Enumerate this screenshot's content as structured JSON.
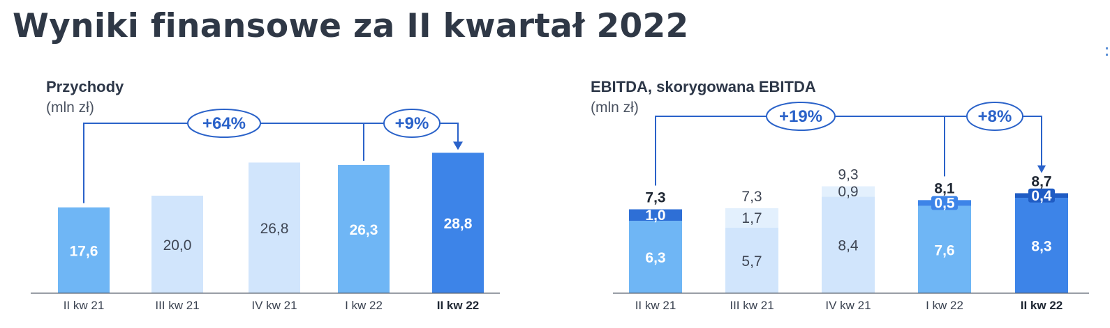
{
  "title": "Wyniki finansowe za II kwartał 2022",
  "chart_data": [
    {
      "type": "bar",
      "title": "Przychody",
      "subtitle": "(mln zł)",
      "categories": [
        "II kw 21",
        "III kw 21",
        "IV kw 21",
        "I kw 22",
        "II kw 22"
      ],
      "values": [
        17.6,
        20.0,
        26.8,
        26.3,
        28.8
      ],
      "value_labels": [
        "17,6",
        "20,0",
        "26,8",
        "26,3",
        "28,8"
      ],
      "highlight_category": "II kw 22",
      "ylim": [
        0,
        30
      ],
      "annotations": [
        {
          "label": "+64%",
          "from": "II kw 21",
          "to": "II kw 22"
        },
        {
          "label": "+9%",
          "from": "I kw 22",
          "to": "II kw 22"
        }
      ],
      "colors": [
        "#6fb6f5",
        "#d1e5fc",
        "#d1e5fc",
        "#6fb6f5",
        "#3d84e8"
      ]
    },
    {
      "type": "bar",
      "stacked": true,
      "title": "EBITDA, skorygowana EBITDA",
      "subtitle": "(mln zł)",
      "categories": [
        "II kw 21",
        "III kw 21",
        "IV kw 21",
        "I kw 22",
        "II kw 22"
      ],
      "series": [
        {
          "values": [
            6.3,
            5.7,
            8.4,
            7.6,
            8.3
          ],
          "labels": [
            "6,3",
            "5,7",
            "8,4",
            "7,6",
            "8,3"
          ]
        },
        {
          "values": [
            1.0,
            1.7,
            0.9,
            0.5,
            0.4
          ],
          "labels": [
            "1,0",
            "1,7",
            "0,9",
            "0,5",
            "0,4"
          ]
        }
      ],
      "totals": [
        7.3,
        7.3,
        9.3,
        8.1,
        8.7
      ],
      "total_labels": [
        "7,3",
        "7,3",
        "9,3",
        "8,1",
        "8,7"
      ],
      "highlight_category": "II kw 22",
      "ylim": [
        0,
        10
      ],
      "annotations": [
        {
          "label": "+19%",
          "from": "II kw 21",
          "to": "II kw 22"
        },
        {
          "label": "+8%",
          "from": "I kw 22",
          "to": "II kw 22"
        }
      ],
      "colors": {
        "base": [
          "#6fb6f5",
          "#d1e5fc",
          "#d1e5fc",
          "#6fb6f5",
          "#3d84e8"
        ],
        "top": [
          "#2e6fd6",
          "#e3f0fd",
          "#e3f0fd",
          "#3d84e8",
          "#1f5cc4"
        ]
      }
    }
  ],
  "colors": {
    "connector": "#2a62c9",
    "axis": "#5c6370",
    "dark_text": "#2d3748",
    "light_text": "#ffffff"
  }
}
